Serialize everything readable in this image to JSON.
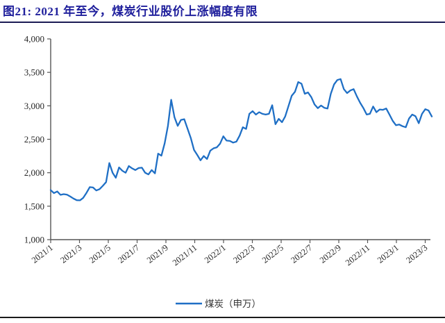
{
  "title": {
    "text": "图21:  2021 年至今，煤炭行业股价上涨幅度有限"
  },
  "legend": {
    "label": "煤炭（申万）"
  },
  "colors": {
    "title": "#1f1f9c",
    "title_rule": "#1b1b55",
    "bottom_rule": "#1a1a1a",
    "line": "#1f6fc5",
    "axis": "#555555",
    "tick_text": "#262626"
  },
  "chart_data": {
    "type": "line",
    "title": "图21: 2021 年至今，煤炭行业股价上涨幅度有限",
    "x_description": "weekly observations, Jan 2021 - mid Mar 2023",
    "x_tick_labels": [
      "2021/1",
      "2021/3",
      "2021/5",
      "2021/7",
      "2021/9",
      "2021/11",
      "2022/1",
      "2022/3",
      "2022/5",
      "2022/7",
      "2022/9",
      "2022/11",
      "2023/1",
      "2023/3"
    ],
    "y_ticks": [
      4000,
      3500,
      3000,
      2500,
      2000,
      1500,
      1000
    ],
    "y_tick_labels": [
      "4,000",
      "3,500",
      "3,000",
      "2,500",
      "2,000",
      "1,500",
      "1,000"
    ],
    "ylim": [
      1000,
      4000
    ],
    "grid": false,
    "legend_position": "bottom",
    "series": [
      {
        "name": "煤炭（申万）",
        "values": [
          1740,
          1695,
          1720,
          1670,
          1680,
          1672,
          1645,
          1615,
          1590,
          1588,
          1625,
          1700,
          1785,
          1780,
          1735,
          1755,
          1805,
          1860,
          2145,
          2000,
          1925,
          2080,
          2030,
          2000,
          2100,
          2065,
          2040,
          2070,
          2075,
          2000,
          1975,
          2040,
          1990,
          2285,
          2255,
          2440,
          2700,
          3090,
          2830,
          2700,
          2790,
          2800,
          2660,
          2520,
          2340,
          2265,
          2185,
          2250,
          2205,
          2330,
          2365,
          2380,
          2435,
          2545,
          2480,
          2475,
          2450,
          2465,
          2555,
          2680,
          2655,
          2880,
          2920,
          2870,
          2905,
          2880,
          2870,
          2880,
          3010,
          2725,
          2805,
          2755,
          2840,
          2995,
          3150,
          3210,
          3355,
          3330,
          3180,
          3200,
          3130,
          3020,
          2965,
          3005,
          2970,
          2960,
          3180,
          3320,
          3385,
          3400,
          3250,
          3190,
          3230,
          3250,
          3140,
          3045,
          2965,
          2870,
          2880,
          2990,
          2905,
          2945,
          2940,
          2960,
          2870,
          2775,
          2710,
          2720,
          2695,
          2680,
          2810,
          2870,
          2845,
          2740,
          2880,
          2950,
          2930,
          2840
        ]
      }
    ]
  }
}
